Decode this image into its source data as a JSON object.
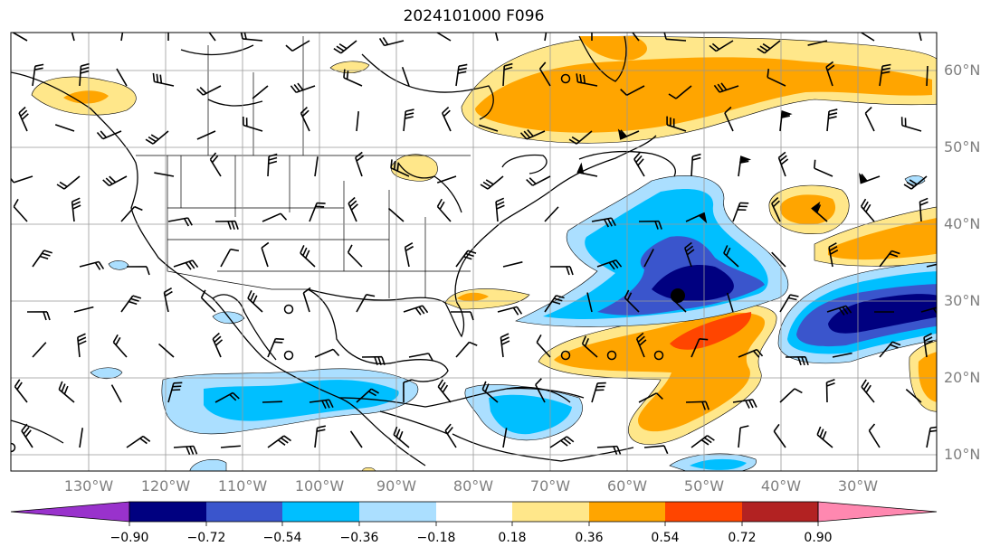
{
  "title": "2024101000 F096",
  "lat_labels": [
    "60°N",
    "50°N",
    "40°N",
    "30°N",
    "20°N",
    "10°N"
  ],
  "lon_labels": [
    "130°W",
    "120°W",
    "110°W",
    "100°W",
    "90°W",
    "80°W",
    "70°W",
    "60°W",
    "50°W",
    "40°W",
    "30°W"
  ],
  "colorbar": {
    "ticks": [
      "−0.90",
      "−0.72",
      "−0.54",
      "−0.36",
      "−0.18",
      "0.18",
      "0.36",
      "0.54",
      "0.72",
      "0.90"
    ],
    "colors": [
      "#9932cc",
      "#000080",
      "#3a55cc",
      "#00bfff",
      "#abdfff",
      "#ffffff",
      "#ffe78a",
      "#ffa500",
      "#ff4500",
      "#b22222",
      "#ff88b0"
    ]
  }
}
